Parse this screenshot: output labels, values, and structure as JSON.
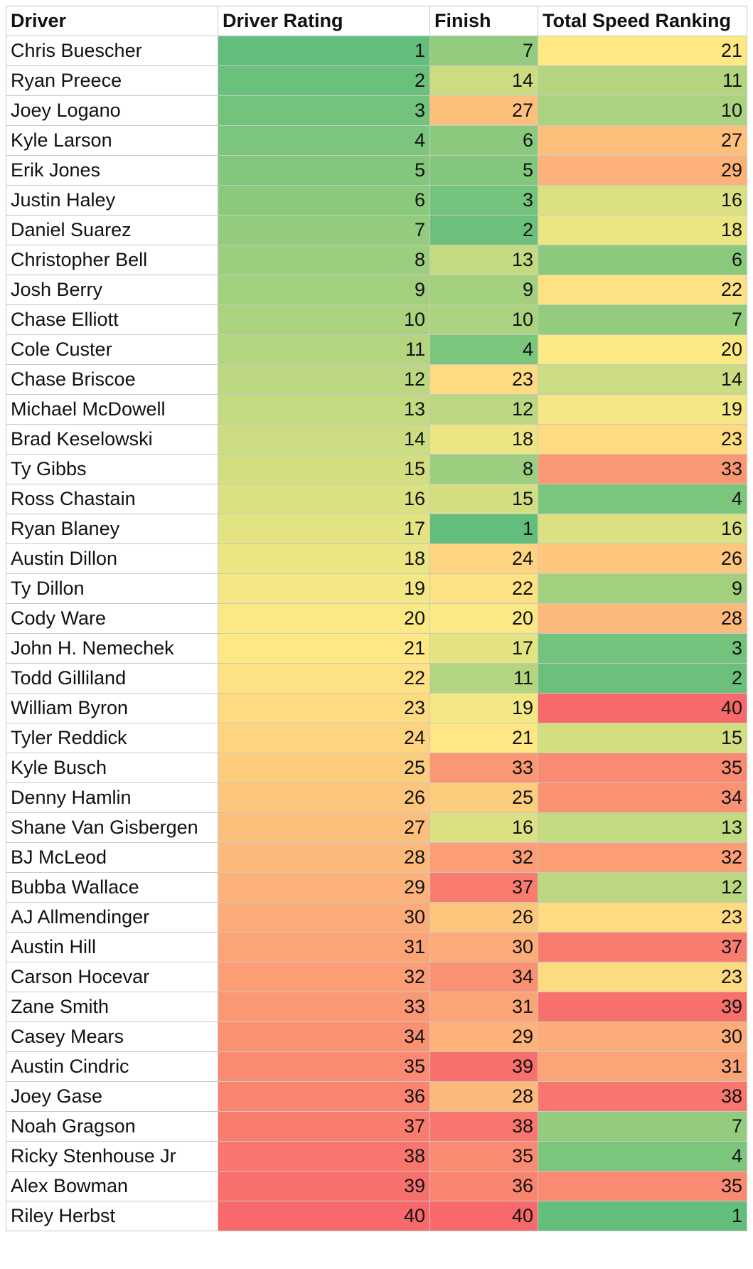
{
  "headers": [
    "Driver",
    "Driver Rating",
    "Finish",
    "Total Speed Ranking"
  ],
  "rows": [
    [
      "Chris Buescher",
      1,
      7,
      21
    ],
    [
      "Ryan Preece",
      2,
      14,
      11
    ],
    [
      "Joey Logano",
      3,
      27,
      10
    ],
    [
      "Kyle Larson",
      4,
      6,
      27
    ],
    [
      "Erik Jones",
      5,
      5,
      29
    ],
    [
      "Justin Haley",
      6,
      3,
      16
    ],
    [
      "Daniel Suarez",
      7,
      2,
      18
    ],
    [
      "Christopher Bell",
      8,
      13,
      6
    ],
    [
      "Josh Berry",
      9,
      9,
      22
    ],
    [
      "Chase Elliott",
      10,
      10,
      7
    ],
    [
      "Cole Custer",
      11,
      4,
      20
    ],
    [
      "Chase Briscoe",
      12,
      23,
      14
    ],
    [
      "Michael McDowell",
      13,
      12,
      19
    ],
    [
      "Brad Keselowski",
      14,
      18,
      23
    ],
    [
      "Ty Gibbs",
      15,
      8,
      33
    ],
    [
      "Ross Chastain",
      16,
      15,
      4
    ],
    [
      "Ryan Blaney",
      17,
      1,
      16
    ],
    [
      "Austin Dillon",
      18,
      24,
      26
    ],
    [
      "Ty Dillon",
      19,
      22,
      9
    ],
    [
      "Cody Ware",
      20,
      20,
      28
    ],
    [
      "John H. Nemechek",
      21,
      17,
      3
    ],
    [
      "Todd Gilliland",
      22,
      11,
      2
    ],
    [
      "William Byron",
      23,
      19,
      40
    ],
    [
      "Tyler Reddick",
      24,
      21,
      15
    ],
    [
      "Kyle Busch",
      25,
      33,
      35
    ],
    [
      "Denny Hamlin",
      26,
      25,
      34
    ],
    [
      "Shane Van Gisbergen",
      27,
      16,
      13
    ],
    [
      "BJ McLeod",
      28,
      32,
      32
    ],
    [
      "Bubba Wallace",
      29,
      37,
      12
    ],
    [
      "AJ Allmendinger",
      30,
      26,
      23
    ],
    [
      "Austin Hill",
      31,
      30,
      37
    ],
    [
      "Carson Hocevar",
      32,
      34,
      23
    ],
    [
      "Zane Smith",
      33,
      31,
      39
    ],
    [
      "Casey Mears",
      34,
      29,
      30
    ],
    [
      "Austin Cindric",
      35,
      39,
      31
    ],
    [
      "Joey Gase",
      36,
      28,
      38
    ],
    [
      "Noah Gragson",
      37,
      38,
      7
    ],
    [
      "Ricky Stenhouse Jr",
      38,
      35,
      4
    ],
    [
      "Alex Bowman",
      39,
      36,
      35
    ],
    [
      "Riley Herbst",
      40,
      40,
      1
    ]
  ],
  "color_scale": {
    "low": "#63be7b",
    "mid": "#ffeb84",
    "high": "#f8696b",
    "min": 1,
    "max": 40
  }
}
